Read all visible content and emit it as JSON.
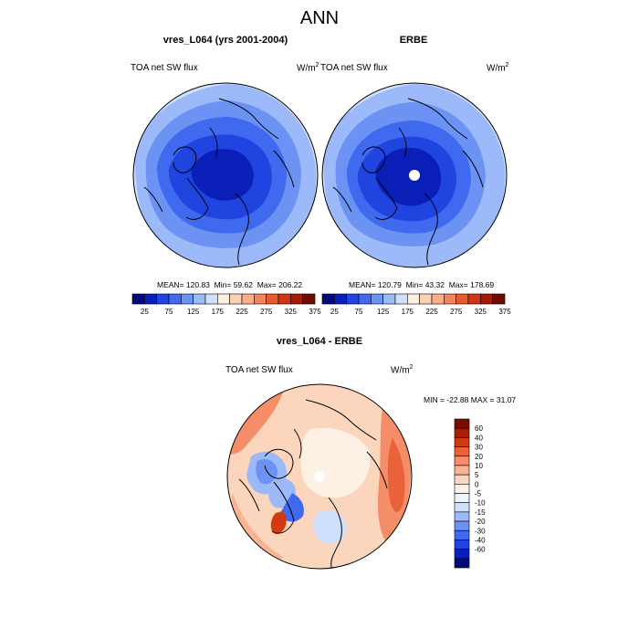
{
  "title": "ANN",
  "panels": [
    {
      "title": "vres_L064 (yrs 2001-2004)",
      "variable": "TOA net SW flux",
      "units_base": "W/m",
      "units_exp": "2",
      "mean": "120.83",
      "min": "59.62",
      "max": "206.22"
    },
    {
      "title": "ERBE",
      "variable": "TOA net SW flux",
      "units_base": "W/m",
      "units_exp": "2",
      "mean": "120.79",
      "min": "43.32",
      "max": "178.69"
    }
  ],
  "diff_panel": {
    "title": "vres_L064 - ERBE",
    "variable": "TOA net SW flux",
    "units_base": "W/m",
    "units_exp": "2",
    "min": "-22.88",
    "max": "31.07"
  },
  "labels": {
    "mean": "MEAN=",
    "min": "Min=",
    "max": "Max=",
    "min_upper": "MIN =",
    "max_upper": "MAX ="
  },
  "colorbar_main": {
    "colors": [
      "#050a7a",
      "#0a1fb8",
      "#1f44e0",
      "#3f69ef",
      "#6c93f4",
      "#9cbaf9",
      "#cfe0fc",
      "#fdf0e0",
      "#fcd0b2",
      "#f9ad88",
      "#f3855d",
      "#e65a30",
      "#cc3814",
      "#a11b06",
      "#6e0a00"
    ],
    "ticks": [
      "25",
      "75",
      "125",
      "175",
      "225",
      "275",
      "325",
      "375"
    ]
  },
  "colorbar_diff": {
    "colors": [
      "#050a7a",
      "#0a1fb8",
      "#1f44e0",
      "#3f69ef",
      "#6c93f4",
      "#9cbaf9",
      "#cfe0fc",
      "#eef4fd",
      "#fdf0e4",
      "#fcd6bc",
      "#f9b493",
      "#f58d69",
      "#ea6239",
      "#d23b12",
      "#a81f03",
      "#7a0c00"
    ],
    "ticks": [
      "60",
      "40",
      "30",
      "20",
      "10",
      "5",
      "0",
      "-5",
      "-10",
      "-15",
      "-20",
      "-30",
      "-40",
      "-60"
    ]
  }
}
